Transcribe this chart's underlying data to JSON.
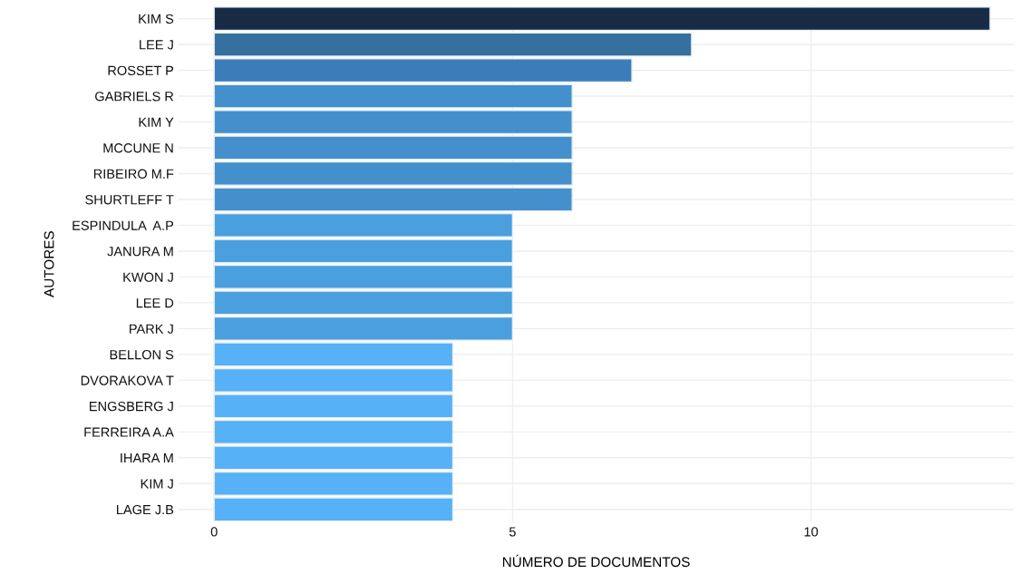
{
  "chart_data": {
    "type": "bar",
    "orientation": "horizontal",
    "xlabel": "NÚMERO DE DOCUMENTOS",
    "ylabel": "AUTORES",
    "categories": [
      "KIM S",
      "LEE J",
      "ROSSET P",
      "GABRIELS R",
      "KIM Y",
      "MCCUNE N",
      "RIBEIRO M.F",
      "SHURTLEFF T",
      "ESPINDULA  A.P",
      "JANURA M",
      "KWON J",
      "LEE D",
      "PARK J",
      "BELLON S",
      "DVORAKOVA T",
      "ENGSBERG J",
      "FERREIRA A.A",
      "IHARA M",
      "KIM J",
      "LAGE J.B"
    ],
    "values": [
      13,
      8,
      7,
      6,
      6,
      6,
      6,
      6,
      5,
      5,
      5,
      5,
      5,
      4,
      4,
      4,
      4,
      4,
      4,
      4
    ],
    "colors": [
      "#172b45",
      "#36709f",
      "#3b7db8",
      "#4490cc",
      "#4490cc",
      "#4490cc",
      "#4490cc",
      "#4490cc",
      "#4aa0de",
      "#4aa0de",
      "#4aa0de",
      "#4aa0de",
      "#4aa0de",
      "#56b1f7",
      "#56b1f7",
      "#56b1f7",
      "#56b1f7",
      "#56b1f7",
      "#56b1f7",
      "#56b1f7"
    ],
    "xlim": [
      -0.6,
      13.4
    ],
    "xticks": [
      0,
      5,
      10
    ],
    "grid": true
  }
}
